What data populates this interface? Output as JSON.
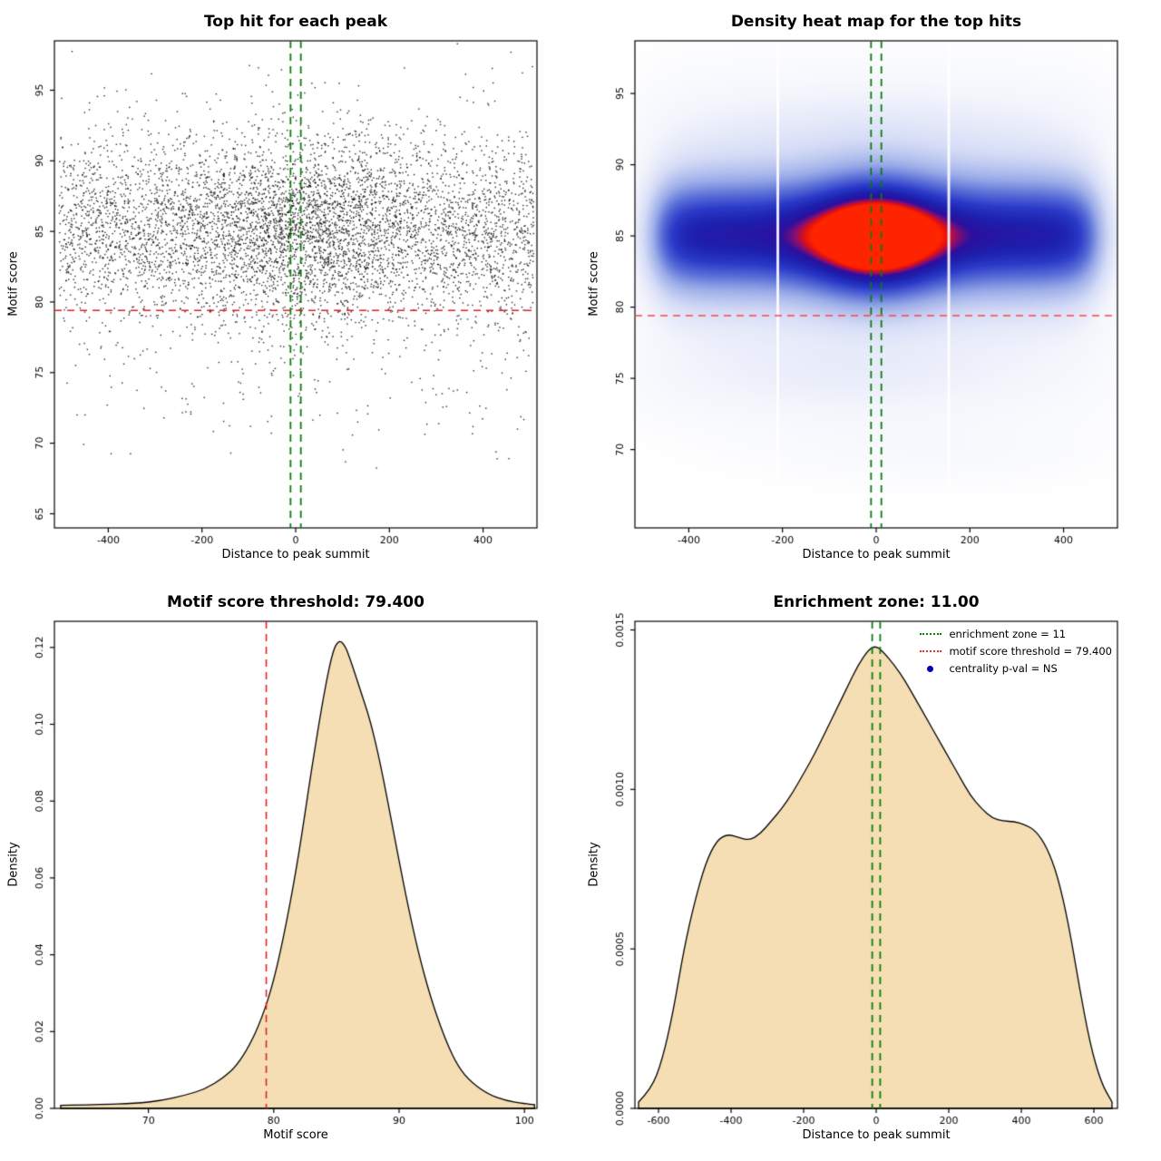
{
  "figure": {
    "background": "#ffffff"
  },
  "chart_data": [
    {
      "type": "scatter",
      "title": "Top hit for each peak",
      "xlabel": "Distance to peak summit",
      "ylabel": "Motif score",
      "xlim": [
        -515,
        515
      ],
      "ylim": [
        64,
        98.5
      ],
      "xticks": [
        -400,
        -200,
        0,
        200,
        400
      ],
      "xtick_labels": [
        "-400",
        "-200",
        "0",
        "200",
        "400"
      ],
      "yticks": [
        65,
        70,
        75,
        80,
        85,
        90,
        95
      ],
      "ytick_labels": [
        "65",
        "70",
        "75",
        "80",
        "85",
        "90",
        "95"
      ],
      "points": {
        "n": 6200,
        "seed": 42,
        "x_uniform_weight": 0.75,
        "x_uniform_range": [
          -505,
          508
        ],
        "x_normal_mean": 0,
        "x_normal_sd": 140,
        "y_components": [
          {
            "weight": 0.86,
            "mean": 85.2,
            "sd": 3.2
          },
          {
            "weight": 0.12,
            "mean": 85.4,
            "sd": 5.2
          },
          {
            "weight": 0.02,
            "mean": 74.5,
            "sd": 3.0
          }
        ],
        "color": "#000000"
      },
      "threshold_line": {
        "value": 79.4,
        "color": "#dd2222",
        "orientation": "horizontal",
        "style": "dashed"
      },
      "zone_lines": {
        "values": [
          -11,
          11
        ],
        "color": "#0a7d0a",
        "orientation": "vertical",
        "style": "dashed"
      }
    },
    {
      "type": "heatmap",
      "title": "Density heat map for the top hits",
      "xlabel": "Distance to peak summit",
      "ylabel": "Motif score",
      "xlim": [
        -515,
        515
      ],
      "ylim": [
        64.5,
        98.7
      ],
      "xticks": [
        -400,
        -200,
        0,
        200,
        400
      ],
      "xtick_labels": [
        "-400",
        "-200",
        "0",
        "200",
        "400"
      ],
      "yticks": [
        70,
        75,
        80,
        85,
        90,
        95
      ],
      "ytick_labels": [
        "70",
        "75",
        "80",
        "85",
        "90",
        "95"
      ],
      "density_model": {
        "band": {
          "amp": 0.6,
          "y_mean": 85,
          "y_sd": 2.6,
          "x_edge": 468,
          "x_edge_soft": 22
        },
        "halo": {
          "amp": 0.22,
          "y_mean": 85.2,
          "y_sd": 6.0,
          "x_edge": 487,
          "x_edge_soft": 45
        },
        "center": {
          "amp": 0.52,
          "x_mean": 0,
          "x_sd": 95,
          "y_mean": 84.8,
          "y_sd": 2.9
        },
        "low1": {
          "amp": 0.085,
          "y_mean": 74.6,
          "y_sd": 2.3,
          "x_mean": -60,
          "x_sd": 330
        },
        "low2": {
          "amp": 0.05,
          "y_mean": 69.6,
          "y_sd": 1.6,
          "x_mean": 120,
          "x_sd": 260
        },
        "top": {
          "amp": 0.06,
          "y_mean": 93,
          "y_sd": 2.5,
          "x_mean": 0,
          "x_sd": 300
        }
      },
      "colormap": [
        [
          0.0,
          "#ffffff"
        ],
        [
          0.1,
          "#f3f5fc"
        ],
        [
          0.22,
          "#d5dcf6"
        ],
        [
          0.38,
          "#9aabe8"
        ],
        [
          0.52,
          "#5a6fd8"
        ],
        [
          0.66,
          "#2b3ac8"
        ],
        [
          0.78,
          "#1d20ae"
        ],
        [
          0.87,
          "#2c0f9e"
        ],
        [
          0.92,
          "#8c0e6e"
        ],
        [
          0.96,
          "#e01010"
        ],
        [
          1.0,
          "#ff2400"
        ]
      ],
      "white_stripes_x": [
        -210,
        155
      ],
      "threshold_line": {
        "value": 79.4,
        "color": "#ff4444",
        "orientation": "horizontal",
        "style": "dashed"
      },
      "zone_lines": {
        "values": [
          -11,
          11
        ],
        "color": "#0a7d0a",
        "orientation": "vertical",
        "style": "dashed"
      }
    },
    {
      "type": "area",
      "title": "Motif score threshold: 79.400",
      "xlabel": "Motif score",
      "ylabel": "Density",
      "xlim": [
        62.5,
        101
      ],
      "ylim": [
        0,
        0.1268
      ],
      "xticks": [
        70,
        80,
        90,
        100
      ],
      "xtick_labels": [
        "70",
        "80",
        "90",
        "100"
      ],
      "yticks": [
        0,
        0.02,
        0.04,
        0.06,
        0.08,
        0.1,
        0.12
      ],
      "ytick_labels": [
        "0.00",
        "0.02",
        "0.04",
        "0.06",
        "0.08",
        "0.10",
        "0.12"
      ],
      "fill_color": "#f5deb3",
      "line_color": "#000000",
      "curve_x": [
        63,
        66,
        69,
        71,
        73,
        74.5,
        76,
        77,
        78,
        79,
        80,
        81,
        82,
        83,
        84,
        84.7,
        85.2,
        85.7,
        86.2,
        87,
        87.7,
        88.5,
        89.5,
        90.5,
        91.5,
        92.5,
        93.5,
        94.5,
        95.5,
        97,
        98.5,
        100,
        100.8
      ],
      "curve_y": [
        0.0008,
        0.001,
        0.0013,
        0.002,
        0.0035,
        0.005,
        0.008,
        0.011,
        0.016,
        0.023,
        0.033,
        0.048,
        0.066,
        0.088,
        0.108,
        0.119,
        0.122,
        0.1205,
        0.116,
        0.108,
        0.101,
        0.09,
        0.073,
        0.056,
        0.041,
        0.029,
        0.0195,
        0.012,
        0.0075,
        0.0038,
        0.002,
        0.0012,
        0.001
      ],
      "threshold_line": {
        "value": 79.4,
        "color": "#dd2222",
        "orientation": "vertical",
        "style": "dashed"
      }
    },
    {
      "type": "area",
      "title": "Enrichment zone: 11.00",
      "xlabel": "Distance to peak summit",
      "ylabel": "Density",
      "xlim": [
        -665,
        665
      ],
      "ylim": [
        0,
        0.001527
      ],
      "xticks": [
        -600,
        -400,
        -200,
        0,
        200,
        400,
        600
      ],
      "xtick_labels": [
        "-600",
        "-400",
        "-200",
        "0",
        "200",
        "400",
        "600"
      ],
      "yticks": [
        0,
        0.0005,
        0.001,
        0.0015
      ],
      "ytick_labels": [
        "0.0000",
        "0.0005",
        "0.0010",
        "0.0015"
      ],
      "fill_color": "#f5deb3",
      "line_color": "#000000",
      "curve_x": [
        -655,
        -620,
        -590,
        -560,
        -530,
        -500,
        -470,
        -440,
        -410,
        -380,
        -350,
        -320,
        -290,
        -260,
        -230,
        -200,
        -170,
        -140,
        -110,
        -80,
        -50,
        -20,
        0,
        20,
        50,
        80,
        110,
        140,
        170,
        200,
        230,
        260,
        290,
        320,
        350,
        380,
        410,
        440,
        470,
        500,
        530,
        560,
        590,
        620,
        650
      ],
      "curve_y": [
        2e-05,
        6e-05,
        0.00015,
        0.0003,
        0.0005,
        0.00065,
        0.00077,
        0.00084,
        0.00086,
        0.00085,
        0.00084,
        0.00086,
        0.0009,
        0.00094,
        0.00099,
        0.00105,
        0.00111,
        0.00118,
        0.00125,
        0.00132,
        0.00139,
        0.00144,
        0.00145,
        0.00143,
        0.00139,
        0.00134,
        0.00128,
        0.00122,
        0.00116,
        0.0011,
        0.00104,
        0.00098,
        0.00094,
        0.00091,
        0.0009,
        0.0009,
        0.00089,
        0.00087,
        0.00082,
        0.00073,
        0.00058,
        0.00038,
        0.0002,
        8e-05,
        2e-05
      ],
      "zone_lines": {
        "values": [
          -11,
          11
        ],
        "color": "#0a7d0a",
        "orientation": "vertical",
        "style": "dashed"
      },
      "legend": {
        "items": [
          {
            "label": "enrichment zone = 11",
            "color": "#0a7d0a",
            "marker": "dotted-line"
          },
          {
            "label": "motif score threshold = 79.400",
            "color": "#dd3333",
            "marker": "dotted-line"
          },
          {
            "label": "centrality p-val = NS",
            "color": "#0000bb",
            "marker": "dot"
          }
        ]
      }
    }
  ]
}
